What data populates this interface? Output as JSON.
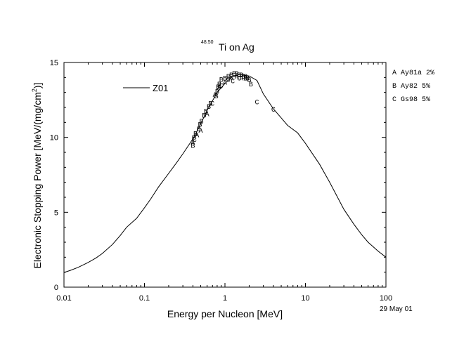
{
  "chart_data": {
    "type": "scatter",
    "title": "Ti on Ag",
    "title_superscript": "48.50",
    "xlabel": "Energy per Nucleon [MeV]",
    "ylabel_main": "Electronic Stopping Power [MeV/(mg/cm",
    "ylabel_sup": "2",
    "ylabel_tail": ")]",
    "x_scale": "log",
    "xlim": [
      0.01,
      100
    ],
    "ylim": [
      0,
      15
    ],
    "x_tick_labels": [
      "0.01",
      "0.1",
      "1",
      "10",
      "100"
    ],
    "y_tick_labels": [
      "0",
      "5",
      "10",
      "15"
    ],
    "date": "29 May 01",
    "curve_legend": "Z01",
    "grid": false,
    "series": [
      {
        "name": "Z01",
        "kind": "line",
        "color": "#000000",
        "x": [
          0.01,
          0.012,
          0.015,
          0.02,
          0.025,
          0.03,
          0.04,
          0.05,
          0.06,
          0.08,
          0.1,
          0.12,
          0.15,
          0.2,
          0.25,
          0.3,
          0.4,
          0.5,
          0.6,
          0.8,
          1.0,
          1.2,
          1.5,
          2.0,
          2.5,
          3.0,
          4.0,
          5.0,
          6.0,
          8.0,
          10,
          15,
          20,
          30,
          40,
          50,
          60,
          80,
          100
        ],
        "y": [
          0.98,
          1.12,
          1.32,
          1.65,
          1.95,
          2.25,
          2.85,
          3.45,
          4.0,
          4.6,
          5.3,
          5.9,
          6.7,
          7.6,
          8.3,
          8.9,
          9.9,
          10.9,
          11.8,
          13.0,
          13.6,
          14.0,
          14.2,
          14.1,
          13.8,
          12.9,
          11.9,
          11.3,
          10.8,
          10.3,
          9.6,
          8.2,
          7.0,
          5.2,
          4.2,
          3.5,
          3.0,
          2.4,
          2.0
        ]
      },
      {
        "name": "Ay81a",
        "kind": "markers",
        "marker": "A",
        "x": [
          0.4,
          0.45,
          0.5,
          0.6,
          0.75,
          0.85,
          1.0,
          1.2,
          1.4,
          1.6
        ],
        "y": [
          9.7,
          10.2,
          10.5,
          11.6,
          12.9,
          13.4,
          13.7,
          14.0,
          14.1,
          14.0
        ]
      },
      {
        "name": "Ay82",
        "kind": "markers",
        "marker": "B",
        "x": [
          0.4,
          0.41,
          0.43,
          0.47,
          0.49,
          0.51,
          0.55,
          0.58,
          0.63,
          0.66,
          0.78,
          0.8,
          0.82,
          0.85,
          0.9,
          1.0,
          1.1,
          1.2,
          1.3,
          1.4,
          1.5,
          1.6,
          1.7,
          1.8,
          1.9,
          2.0,
          2.1
        ],
        "y": [
          9.5,
          10.0,
          10.3,
          10.6,
          10.9,
          11.1,
          11.5,
          11.8,
          12.1,
          12.3,
          12.8,
          13.1,
          13.4,
          13.6,
          13.9,
          14.0,
          14.1,
          14.2,
          14.3,
          14.3,
          14.2,
          14.2,
          14.1,
          14.0,
          14.0,
          13.9,
          13.6
        ]
      },
      {
        "name": "Gs98",
        "kind": "markers",
        "marker": "C",
        "x": [
          0.42,
          0.7,
          0.9,
          1.1,
          1.25,
          1.5,
          1.8,
          2.5,
          4.0
        ],
        "y": [
          9.9,
          12.3,
          13.5,
          13.9,
          13.8,
          14.0,
          14.1,
          12.4,
          11.9
        ]
      }
    ],
    "legend_entries": [
      {
        "letter": "A",
        "source": "Ay81a",
        "uncertainty": "2%"
      },
      {
        "letter": "B",
        "source": "Ay82",
        "uncertainty": "5%"
      },
      {
        "letter": "C",
        "source": "Gs98",
        "uncertainty": "5%"
      }
    ]
  }
}
